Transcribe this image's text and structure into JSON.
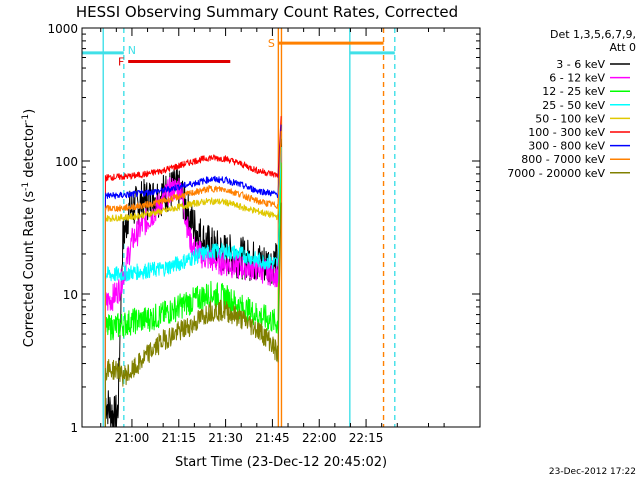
{
  "chart_data": {
    "type": "line",
    "title": "HESSI Observing Summary Count Rates, Corrected",
    "xlabel": "Start Time (23-Dec-12 20:45:02)",
    "ylabel_main": "Corrected Count Rate (s",
    "ylabel_exp1": "-1",
    "ylabel_mid": " detector",
    "ylabel_exp2": "-1",
    "ylabel_end": ")",
    "ylog": true,
    "ylim": [
      1,
      1000
    ],
    "xlim_minutes": [
      -16.0,
      111.5
    ],
    "x_ticks": [
      {
        "minute": 0,
        "label": "21:00"
      },
      {
        "minute": 15,
        "label": "21:15"
      },
      {
        "minute": 30,
        "label": "21:30"
      },
      {
        "minute": 45,
        "label": "21:45"
      },
      {
        "minute": 60,
        "label": "22:00"
      },
      {
        "minute": 75,
        "label": "22:15"
      }
    ],
    "y_ticks": [
      {
        "value": 1,
        "label": "1"
      },
      {
        "value": 10,
        "label": "10"
      },
      {
        "value": 100,
        "label": "100"
      },
      {
        "value": 1000,
        "label": "1000"
      }
    ],
    "legend_header_1": "Det 1,3,5,6,7,9,",
    "legend_header_2": "Att 0",
    "series": [
      {
        "name": "3 - 6 keV",
        "color": "#000000",
        "x": [
          -8.5,
          -7.5,
          -6.5,
          -5.5,
          -4.5,
          -3,
          -1,
          1,
          3,
          6,
          9,
          12,
          14.5,
          16,
          18,
          20,
          23,
          26,
          30,
          34,
          38,
          42,
          46.8,
          47.8
        ],
        "y": [
          1.6,
          1.4,
          1.3,
          1.2,
          1.3,
          25,
          42,
          45,
          50,
          52,
          55,
          60,
          63,
          55,
          40,
          32,
          25,
          22,
          20,
          19,
          18,
          17,
          17,
          150
        ]
      },
      {
        "name": "6 - 12 keV",
        "color": "#ff00ff",
        "x": [
          -8.5,
          -6,
          -4,
          -2,
          0,
          3,
          6,
          9,
          12,
          14,
          15.5,
          17,
          18.5,
          20,
          23,
          26,
          30,
          34,
          38,
          42,
          46.8,
          47.8
        ],
        "y": [
          8.5,
          9.5,
          11,
          16,
          25,
          32,
          38,
          48,
          60,
          62,
          65,
          40,
          26,
          22,
          19,
          18,
          17,
          16,
          16,
          15,
          14,
          120
        ]
      },
      {
        "name": "12 - 25 keV",
        "color": "#00ff00",
        "x": [
          -8.5,
          -4,
          0,
          5,
          10,
          15,
          20,
          25,
          30,
          35,
          40,
          46.8,
          47.8
        ],
        "y": [
          5.5,
          5.8,
          6.2,
          6.5,
          7,
          8,
          9,
          10,
          9.5,
          8,
          7,
          6,
          100
        ]
      },
      {
        "name": "25 - 50 keV",
        "color": "#00ffff",
        "x": [
          -8.5,
          -4,
          0,
          5,
          10,
          15,
          20,
          25,
          30,
          35,
          40,
          46.8,
          47.8
        ],
        "y": [
          14,
          14,
          14.5,
          15,
          15.5,
          17,
          19,
          21,
          21,
          20,
          18,
          17,
          130
        ]
      },
      {
        "name": "50 - 100 keV",
        "color": "#e0c800",
        "x": [
          -8.5,
          -4,
          0,
          5,
          10,
          15,
          20,
          25,
          30,
          35,
          40,
          46.8,
          47.8
        ],
        "y": [
          37,
          37.5,
          38,
          40,
          42,
          45,
          48,
          50,
          49,
          45,
          42,
          38,
          170
        ]
      },
      {
        "name": "100 - 300 keV",
        "color": "#ff0000",
        "x": [
          -8.5,
          -4,
          0,
          5,
          10,
          15,
          20,
          25,
          30,
          35,
          40,
          46.8,
          47.8
        ],
        "y": [
          75,
          76,
          77,
          80,
          85,
          92,
          100,
          106,
          104,
          95,
          85,
          78,
          220
        ]
      },
      {
        "name": "300 - 800 keV",
        "color": "#0000ff",
        "x": [
          -8.5,
          -4,
          0,
          5,
          10,
          15,
          20,
          25,
          30,
          35,
          40,
          46.8,
          47.8
        ],
        "y": [
          55,
          55,
          56,
          58,
          60,
          64,
          68,
          73,
          72,
          66,
          60,
          56,
          190
        ]
      },
      {
        "name": "800 - 7000 keV",
        "color": "#ff8000",
        "x": [
          -8.5,
          -4,
          0,
          5,
          10,
          15,
          20,
          25,
          30,
          35,
          40,
          46.8,
          47.8
        ],
        "y": [
          44,
          44,
          45,
          47,
          50,
          54,
          58,
          62,
          61,
          56,
          50,
          46,
          170
        ]
      },
      {
        "name": "7000 - 20000 keV",
        "color": "#808000",
        "x": [
          -8.5,
          -4,
          -3.5,
          0,
          5,
          10,
          15,
          20,
          25,
          30,
          35,
          40,
          44,
          46.8,
          47.8
        ],
        "y": [
          2.7,
          2.7,
          2.4,
          2.6,
          3.5,
          4.5,
          5.2,
          6,
          7.5,
          7.5,
          6.5,
          5.5,
          4.5,
          3.5,
          50
        ]
      }
    ],
    "vertical_lines": [
      {
        "minute": -9.2,
        "color": "#40e0e8",
        "style": "solid"
      },
      {
        "minute": -2.6,
        "color": "#40e0e8",
        "style": "dashed"
      },
      {
        "minute": 46.9,
        "color": "#ff8000",
        "style": "solid"
      },
      {
        "minute": 47.9,
        "color": "#ff8000",
        "style": "solid"
      },
      {
        "minute": 69.8,
        "color": "#40e0e8",
        "style": "solid"
      },
      {
        "minute": 80.6,
        "color": "#ff8000",
        "style": "dashed"
      },
      {
        "minute": 84.2,
        "color": "#40e0e8",
        "style": "dashed"
      }
    ],
    "flag_bars": [
      {
        "label": "",
        "color": "#40e0e8",
        "x_start": -16.0,
        "x_end": -2.6,
        "y": 650
      },
      {
        "label": "N",
        "color": "#40e0e8",
        "x_start": -2.6,
        "x_end": -2.6,
        "y": 660
      },
      {
        "label": "F",
        "color": "#e00000",
        "x_start": -1.2,
        "x_end": 31.5,
        "y": 560
      },
      {
        "label": "S",
        "color": "#ff8000",
        "x_start": 46.9,
        "x_end": 80.6,
        "y": 770
      },
      {
        "label": "",
        "color": "#40e0e8",
        "x_start": 69.8,
        "x_end": 84.2,
        "y": 650
      }
    ]
  },
  "timestamp": "23-Dec-2012 17:22"
}
